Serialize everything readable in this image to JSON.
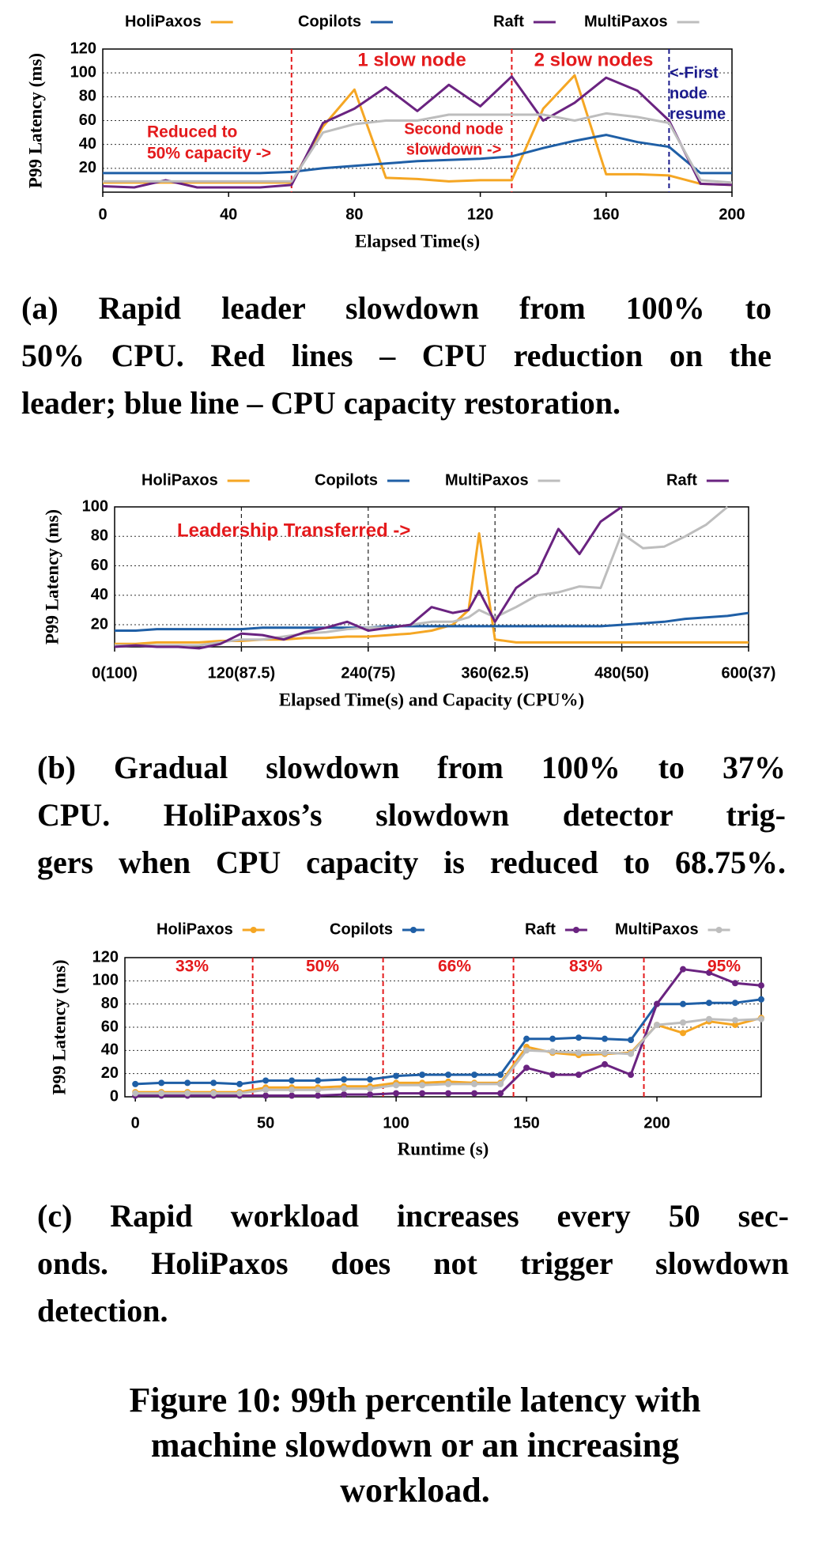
{
  "chart_data": [
    {
      "type": "line",
      "y_label": "P99 Latency (ms)",
      "x_label": "Elapsed Time(s)",
      "x": [
        0,
        10,
        20,
        30,
        40,
        50,
        60,
        70,
        80,
        90,
        100,
        110,
        120,
        130,
        140,
        150,
        160,
        170,
        180,
        190,
        200
      ],
      "series": [
        {
          "name": "HoliPaxos",
          "color": "#f5a623",
          "values": [
            8,
            8,
            8,
            8,
            8,
            8,
            8,
            55,
            86,
            12,
            11,
            9,
            10,
            10,
            70,
            98,
            15,
            15,
            14,
            7,
            6
          ]
        },
        {
          "name": "Copilots",
          "color": "#1f5fa6",
          "values": [
            16,
            16,
            16,
            16,
            16,
            16,
            17,
            20,
            22,
            24,
            26,
            27,
            28,
            30,
            37,
            43,
            48,
            42,
            38,
            16,
            16
          ]
        },
        {
          "name": "Raft",
          "color": "#6a2380",
          "values": [
            5,
            4,
            10,
            4,
            4,
            4,
            6,
            58,
            70,
            88,
            68,
            90,
            72,
            97,
            60,
            75,
            96,
            85,
            60,
            7,
            6
          ]
        },
        {
          "name": "MultiPaxos",
          "color": "#bdbdbd",
          "values": [
            9,
            9,
            9,
            9,
            9,
            9,
            9,
            50,
            57,
            60,
            60,
            65,
            65,
            65,
            65,
            60,
            66,
            63,
            58,
            10,
            8
          ]
        }
      ],
      "xlim": [
        0,
        200
      ],
      "xticks": [
        0,
        40,
        80,
        120,
        160,
        200
      ],
      "ylim": [
        0,
        120
      ],
      "yticks": [
        20,
        40,
        60,
        80,
        100,
        120
      ],
      "grid": "y",
      "markers": [
        {
          "x": 60,
          "color": "#e41a1c"
        },
        {
          "x": 130,
          "color": "#e41a1c"
        },
        {
          "x": 180,
          "color": "#1a1a8c"
        }
      ],
      "annotations": [
        {
          "lines": [
            "1 slow node"
          ],
          "color": "#e41a1c"
        },
        {
          "lines": [
            "2 slow nodes"
          ],
          "color": "#e41a1c"
        },
        {
          "lines": [
            "<-First",
            "node",
            "resume"
          ],
          "color": "#1a1a8c"
        },
        {
          "lines": [
            "Reduced to",
            "50% capacity ->"
          ],
          "color": "#e41a1c"
        },
        {
          "lines": [
            "Second node",
            "slowdown ->"
          ],
          "color": "#e41a1c"
        }
      ],
      "caption": [
        "(a) Rapid leader slowdown from 100% to",
        "50% CPU. Red lines – CPU reduction on the",
        "leader; blue line – CPU capacity restoration."
      ]
    },
    {
      "type": "line",
      "y_label": "P99 Latency (ms)",
      "x_label": "Elapsed Time(s) and Capacity (CPU%)",
      "x": [
        0,
        20,
        40,
        60,
        80,
        100,
        120,
        140,
        160,
        180,
        200,
        220,
        240,
        260,
        280,
        300,
        320,
        335,
        345,
        360,
        380,
        400,
        420,
        440,
        460,
        480,
        500,
        520,
        540,
        560,
        580,
        600
      ],
      "series": [
        {
          "name": "HoliPaxos",
          "color": "#f5a623",
          "values": [
            7,
            7,
            8,
            8,
            8,
            9,
            9,
            10,
            10,
            11,
            11,
            12,
            12,
            13,
            14,
            16,
            20,
            30,
            82,
            10,
            8,
            8,
            8,
            8,
            8,
            8,
            8,
            8,
            8,
            8,
            8,
            8
          ]
        },
        {
          "name": "Copilots",
          "color": "#1f5fa6",
          "values": [
            16,
            16,
            17,
            17,
            17,
            17,
            17,
            18,
            18,
            18,
            18,
            18,
            18,
            19,
            19,
            19,
            19,
            19,
            19,
            19,
            19,
            19,
            19,
            19,
            19,
            20,
            21,
            22,
            24,
            25,
            26,
            28
          ]
        },
        {
          "name": "MultiPaxos",
          "color": "#bdbdbd",
          "values": [
            6,
            6,
            6,
            6,
            6,
            8,
            10,
            10,
            12,
            14,
            15,
            17,
            18,
            18,
            20,
            22,
            22,
            25,
            30,
            25,
            32,
            40,
            42,
            46,
            45,
            82,
            72,
            73,
            80,
            88,
            100,
            null
          ]
        },
        {
          "name": "Raft",
          "color": "#6a2380",
          "values": [
            5,
            6,
            5,
            5,
            4,
            7,
            14,
            13,
            10,
            15,
            18,
            22,
            16,
            18,
            20,
            32,
            28,
            30,
            43,
            22,
            45,
            55,
            85,
            68,
            90,
            100,
            null,
            null,
            null,
            null,
            null,
            null
          ]
        }
      ],
      "xlim": [
        0,
        600
      ],
      "xticks": [
        {
          "value": 0,
          "label": "0(100)"
        },
        {
          "value": 120,
          "label": "120(87.5)"
        },
        {
          "value": 240,
          "label": "240(75)"
        },
        {
          "value": 360,
          "label": "360(62.5)"
        },
        {
          "value": 480,
          "label": "480(50)"
        },
        {
          "value": 600,
          "label": "600(37)"
        }
      ],
      "ylim": [
        5,
        100
      ],
      "yticks": [
        20,
        40,
        60,
        80,
        100
      ],
      "grid": "both",
      "markers": [],
      "annotations": [
        {
          "lines": [
            "Leadership Transferred ->"
          ],
          "color": "#e41a1c"
        }
      ],
      "caption": [
        "(b) Gradual slowdown from 100% to 37%",
        "CPU. HoliPaxos’s slowdown detector trig-",
        "gers when CPU capacity is reduced to 68.75%."
      ]
    },
    {
      "type": "line",
      "y_label": "P99 Latency (ms)",
      "x_label": "Runtime (s)",
      "point_markers": true,
      "x": [
        0,
        10,
        20,
        30,
        40,
        50,
        60,
        70,
        80,
        90,
        100,
        110,
        120,
        130,
        140,
        150,
        160,
        170,
        180,
        190,
        200,
        210,
        220,
        230,
        240
      ],
      "series": [
        {
          "name": "HoliPaxos",
          "color": "#f5a623",
          "values": [
            4,
            4,
            4,
            4,
            4,
            8,
            8,
            8,
            9,
            9,
            12,
            12,
            13,
            12,
            12,
            43,
            38,
            36,
            37,
            38,
            62,
            55,
            65,
            62,
            68
          ]
        },
        {
          "name": "Copilots",
          "color": "#1f5fa6",
          "values": [
            11,
            12,
            12,
            12,
            11,
            14,
            14,
            14,
            15,
            15,
            18,
            19,
            19,
            19,
            19,
            50,
            50,
            51,
            50,
            49,
            80,
            80,
            81,
            81,
            84
          ]
        },
        {
          "name": "Raft",
          "color": "#6a2380",
          "values": [
            1,
            1,
            1,
            1,
            1,
            1,
            1,
            1,
            2,
            2,
            3,
            3,
            3,
            3,
            3,
            25,
            19,
            19,
            28,
            19,
            80,
            110,
            107,
            98,
            96
          ]
        },
        {
          "name": "MultiPaxos",
          "color": "#bdbdbd",
          "values": [
            3,
            3,
            3,
            3,
            3,
            6,
            6,
            6,
            7,
            7,
            10,
            10,
            11,
            11,
            11,
            40,
            39,
            38,
            38,
            37,
            62,
            64,
            67,
            66,
            67
          ]
        }
      ],
      "xlim": [
        -4,
        240
      ],
      "xticks": [
        0,
        50,
        100,
        150,
        200
      ],
      "ylim": [
        0,
        120
      ],
      "yticks": [
        0,
        20,
        40,
        60,
        80,
        100,
        120
      ],
      "grid": "y",
      "markers": [
        {
          "x": 45,
          "color": "#e41a1c"
        },
        {
          "x": 95,
          "color": "#e41a1c"
        },
        {
          "x": 145,
          "color": "#e41a1c"
        },
        {
          "x": 195,
          "color": "#e41a1c"
        }
      ],
      "annotations": [
        {
          "lines": [
            "33%"
          ],
          "color": "#e41a1c"
        },
        {
          "lines": [
            "50%"
          ],
          "color": "#e41a1c"
        },
        {
          "lines": [
            "66%"
          ],
          "color": "#e41a1c"
        },
        {
          "lines": [
            "83%"
          ],
          "color": "#e41a1c"
        },
        {
          "lines": [
            "95%"
          ],
          "color": "#e41a1c"
        }
      ],
      "caption": [
        "(c) Rapid workload increases every 50 sec-",
        "onds. HoliPaxos does not trigger slowdown",
        "detection."
      ]
    }
  ],
  "figure_caption": [
    "Figure 10: 99th percentile latency with",
    "machine slowdown or an increasing",
    "workload."
  ]
}
